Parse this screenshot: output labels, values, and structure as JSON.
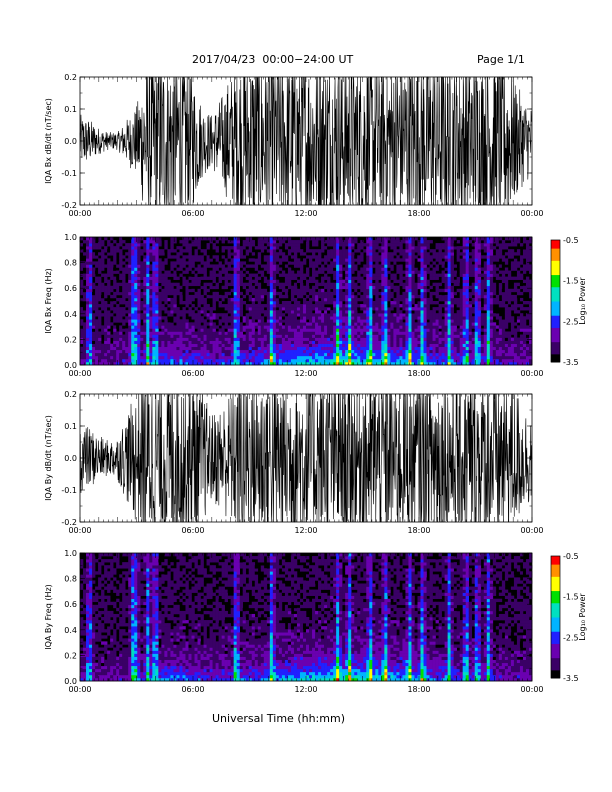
{
  "header": {
    "title": "2017/04/23  00:00−24:00 UT",
    "page": "Page 1/1"
  },
  "colors": {
    "trace": "#000000",
    "background_spectrogram": "#000000",
    "colormap": [
      "#000000",
      "#3a0066",
      "#6a00b0",
      "#2020ff",
      "#00b4ff",
      "#00e0c0",
      "#00e000",
      "#ffff00",
      "#ff9000",
      "#ff0000"
    ]
  },
  "icons": {
    "spectrogram_colorbar": "colorbar-icon"
  },
  "chart_data": [
    {
      "type": "line",
      "panel": "bx-waveform",
      "ylabel": "IQA Bx dB/dt (nT/sec)",
      "ylim": [
        -0.2,
        0.2
      ],
      "yticks": [
        "-0.2",
        "-0.1",
        "0.0",
        "0.1",
        "0.2"
      ],
      "xticks": [
        "00:00",
        "06:00",
        "12:00",
        "18:00",
        "00:00"
      ],
      "xlim_hours": [
        0,
        24
      ],
      "series": [
        {
          "x_hours": [
            0,
            0.5,
            1,
            1.5,
            2,
            2.5,
            3,
            3.5,
            4,
            4.5,
            5,
            5.5,
            6,
            6.5,
            7,
            7.5,
            8,
            8.5,
            9,
            9.5,
            10,
            10.5,
            11,
            11.5,
            12,
            12.5,
            13,
            13.5,
            14,
            14.5,
            15,
            15.5,
            16,
            16.5,
            17,
            17.5,
            18,
            18.5,
            19,
            19.5,
            20,
            20.5,
            21,
            21.5,
            22,
            22.5,
            23,
            23.5,
            24
          ],
          "amplitude": [
            0.06,
            0.05,
            0.03,
            0.02,
            0.02,
            0.05,
            0.08,
            0.18,
            0.2,
            0.2,
            0.2,
            0.2,
            0.15,
            0.08,
            0.06,
            0.1,
            0.15,
            0.2,
            0.2,
            0.2,
            0.2,
            0.2,
            0.2,
            0.2,
            0.2,
            0.2,
            0.2,
            0.2,
            0.2,
            0.2,
            0.2,
            0.2,
            0.2,
            0.2,
            0.2,
            0.2,
            0.2,
            0.2,
            0.2,
            0.2,
            0.2,
            0.2,
            0.2,
            0.2,
            0.2,
            0.2,
            0.15,
            0.1,
            0.08
          ]
        }
      ]
    },
    {
      "type": "heatmap",
      "panel": "bx-spectrogram",
      "ylabel": "IQA Bx Freq (Hz)",
      "ylim": [
        0.0,
        1.0
      ],
      "yticks": [
        "0.0",
        "0.2",
        "0.4",
        "0.6",
        "0.8",
        "1.0"
      ],
      "xticks": [
        "00:00",
        "06:00",
        "12:00",
        "18:00",
        "00:00"
      ],
      "xlim_hours": [
        0,
        24
      ],
      "colorbar": {
        "label": "Log₁₀ Power",
        "range": [
          -3.5,
          -0.5
        ],
        "ticks": [
          "-0.5",
          "-1.5",
          "-2.5",
          "-3.5"
        ]
      },
      "bursts_hours": [
        0.5,
        2.8,
        3.0,
        3.6,
        4.0,
        8.3,
        10.2,
        13.7,
        14.3,
        15.4,
        16.2,
        17.5,
        18.2,
        19.6,
        20.5,
        21.1,
        21.7
      ],
      "background_power": -3.3,
      "low_freq_power": -2.0
    },
    {
      "type": "line",
      "panel": "by-waveform",
      "ylabel": "IQA By dB/dt (nT/sec)",
      "ylim": [
        -0.2,
        0.2
      ],
      "yticks": [
        "-0.2",
        "-0.1",
        "0.0",
        "0.1",
        "0.2"
      ],
      "xticks": [
        "00:00",
        "06:00",
        "12:00",
        "18:00",
        "00:00"
      ],
      "xlim_hours": [
        0,
        24
      ],
      "series": [
        {
          "x_hours": [
            0,
            0.5,
            1,
            1.5,
            2,
            2.5,
            3,
            3.5,
            4,
            4.5,
            5,
            5.5,
            6,
            6.5,
            7,
            7.5,
            8,
            8.5,
            9,
            9.5,
            10,
            10.5,
            11,
            11.5,
            12,
            12.5,
            13,
            13.5,
            14,
            14.5,
            15,
            15.5,
            16,
            16.5,
            17,
            17.5,
            18,
            18.5,
            19,
            19.5,
            20,
            20.5,
            21,
            21.5,
            22,
            22.5,
            23,
            23.5,
            24
          ],
          "amplitude": [
            0.08,
            0.07,
            0.05,
            0.04,
            0.05,
            0.1,
            0.15,
            0.2,
            0.2,
            0.2,
            0.2,
            0.2,
            0.2,
            0.15,
            0.1,
            0.12,
            0.15,
            0.2,
            0.2,
            0.2,
            0.2,
            0.2,
            0.2,
            0.2,
            0.2,
            0.2,
            0.2,
            0.2,
            0.2,
            0.2,
            0.2,
            0.2,
            0.2,
            0.2,
            0.2,
            0.2,
            0.2,
            0.2,
            0.2,
            0.2,
            0.2,
            0.2,
            0.2,
            0.2,
            0.2,
            0.2,
            0.18,
            0.12,
            0.1
          ]
        }
      ]
    },
    {
      "type": "heatmap",
      "panel": "by-spectrogram",
      "ylabel": "IQA By Freq (Hz)",
      "ylim": [
        0.0,
        1.0
      ],
      "yticks": [
        "0.0",
        "0.2",
        "0.4",
        "0.6",
        "0.8",
        "1.0"
      ],
      "xticks": [
        "00:00",
        "06:00",
        "12:00",
        "18:00",
        "00:00"
      ],
      "xlim_hours": [
        0,
        24
      ],
      "colorbar": {
        "label": "Log₁₀ Power",
        "range": [
          -3.5,
          -0.5
        ],
        "ticks": [
          "-0.5",
          "-1.5",
          "-2.5",
          "-3.5"
        ]
      },
      "bursts_hours": [
        0.5,
        2.8,
        3.0,
        3.6,
        4.0,
        8.3,
        10.2,
        13.7,
        14.3,
        15.4,
        16.2,
        17.5,
        18.2,
        19.6,
        20.5,
        21.1,
        21.7
      ],
      "background_power": -3.3,
      "low_freq_power": -2.0
    }
  ],
  "xlabel": "Universal Time (hh:mm)"
}
